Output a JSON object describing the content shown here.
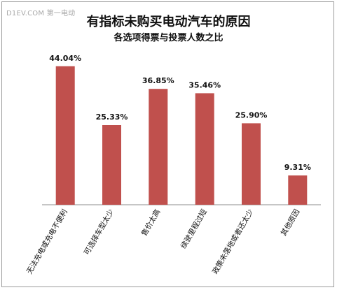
{
  "watermark": "D1EV.COM 第一电动",
  "chart_data": {
    "type": "bar",
    "title": "有指标未购买电动汽车的原因",
    "subtitle": "各选项得票与投票人数之比",
    "categories": [
      "无法充电或充电不便利",
      "可选择车型太少",
      "售价太高",
      "续驶里程过短",
      "政策未落地或者还太少",
      "其他原因"
    ],
    "values": [
      44.04,
      25.33,
      36.85,
      35.46,
      25.9,
      9.31
    ],
    "value_labels": [
      "44.04%",
      "25.33%",
      "36.85%",
      "35.46%",
      "25.90%",
      "9.31%"
    ],
    "unit": "%",
    "ylim": [
      0,
      50
    ],
    "grid": false,
    "legend": "none",
    "colors": {
      "bar": "#c0504d",
      "axis": "#8c8c8c",
      "text": "#111111"
    }
  }
}
